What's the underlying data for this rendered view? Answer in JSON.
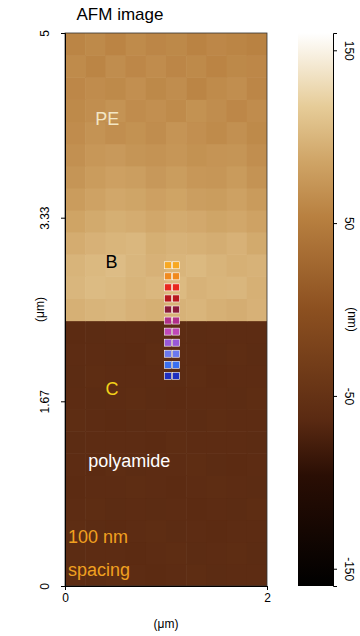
{
  "chart_data": {
    "type": "heatmap",
    "title": "AFM image",
    "x_label": "(μm)",
    "y_label": "(μm)",
    "xlim": [
      0,
      2
    ],
    "xticks": [
      0,
      2
    ],
    "ylim": [
      0,
      5
    ],
    "yticks": [
      0,
      1.67,
      3.33,
      5
    ],
    "x": [
      0.1,
      0.3,
      0.5,
      0.7,
      0.9,
      1.1,
      1.3,
      1.5,
      1.7,
      1.9
    ],
    "y": [
      0.1,
      0.3,
      0.5,
      0.7,
      0.9,
      1.1,
      1.3,
      1.5,
      1.7,
      1.9,
      2.1,
      2.3,
      2.5,
      2.7,
      2.9,
      3.1,
      3.3,
      3.5,
      3.7,
      3.9,
      4.1,
      4.3,
      4.5,
      4.7,
      4.9
    ],
    "z": [
      [
        -60,
        -61,
        -59,
        -60,
        -62,
        -60,
        -59,
        -61,
        -60,
        -60
      ],
      [
        -61,
        -60,
        -60,
        -62,
        -60,
        -59,
        -61,
        -60,
        -59,
        -61
      ],
      [
        -59,
        -61,
        -62,
        -60,
        -59,
        -61,
        -60,
        -62,
        -60,
        -60
      ],
      [
        -60,
        -59,
        -61,
        -60,
        -61,
        -60,
        -62,
        -60,
        -61,
        -59
      ],
      [
        -62,
        -60,
        -60,
        -59,
        -60,
        -62,
        -60,
        -59,
        -60,
        -61
      ],
      [
        -60,
        -62,
        -59,
        -61,
        -60,
        -60,
        -59,
        -61,
        -62,
        -60
      ],
      [
        -61,
        -60,
        -60,
        -60,
        -62,
        -59,
        -60,
        -60,
        -60,
        -61
      ],
      [
        -59,
        -60,
        -62,
        -61,
        -60,
        -60,
        -61,
        -59,
        -60,
        -60
      ],
      [
        -60,
        -61,
        -60,
        -59,
        -61,
        -62,
        -60,
        -60,
        -61,
        -59
      ],
      [
        -61,
        -59,
        -60,
        -60,
        -60,
        -61,
        -59,
        -62,
        -60,
        -60
      ],
      [
        -60,
        -60,
        -61,
        -62,
        -59,
        -60,
        -60,
        -61,
        -59,
        -61
      ],
      [
        -62,
        -61,
        -60,
        -60,
        -61,
        -60,
        -61,
        -60,
        -60,
        -60
      ],
      [
        95,
        98,
        100,
        96,
        94,
        97,
        99,
        95,
        93,
        96
      ],
      [
        100,
        104,
        102,
        98,
        101,
        103,
        97,
        99,
        100,
        95
      ],
      [
        98,
        102,
        105,
        100,
        96,
        99,
        102,
        98,
        95,
        97
      ],
      [
        92,
        96,
        99,
        101,
        94,
        97,
        95,
        93,
        96,
        90
      ],
      [
        85,
        90,
        94,
        92,
        88,
        91,
        89,
        86,
        88,
        84
      ],
      [
        78,
        84,
        88,
        86,
        82,
        85,
        80,
        79,
        83,
        77
      ],
      [
        72,
        78,
        82,
        80,
        75,
        79,
        74,
        73,
        77,
        70
      ],
      [
        68,
        74,
        76,
        72,
        70,
        73,
        69,
        71,
        72,
        66
      ],
      [
        64,
        70,
        66,
        69,
        65,
        71,
        67,
        63,
        68,
        62
      ],
      [
        62,
        66,
        70,
        64,
        67,
        63,
        69,
        65,
        60,
        64
      ],
      [
        60,
        64,
        62,
        67,
        61,
        65,
        58,
        63,
        66,
        59
      ],
      [
        63,
        58,
        65,
        60,
        64,
        59,
        62,
        57,
        61,
        60
      ],
      [
        58,
        62,
        57,
        63,
        59,
        61,
        56,
        60,
        58,
        55
      ]
    ],
    "zlim": [
      -160,
      160
    ],
    "zticks": [
      -150,
      -50,
      50,
      150
    ],
    "z_label": "(nm)",
    "points": {
      "marker": "square",
      "x": [
        1.02,
        1.1,
        1.02,
        1.1,
        1.02,
        1.1,
        1.02,
        1.1,
        1.02,
        1.1,
        1.02,
        1.1,
        1.02,
        1.1,
        1.02,
        1.1,
        1.02,
        1.1,
        1.02,
        1.1,
        1.02,
        1.1
      ],
      "y": [
        2.9,
        2.9,
        2.8,
        2.8,
        2.7,
        2.7,
        2.6,
        2.6,
        2.5,
        2.5,
        2.4,
        2.4,
        2.3,
        2.3,
        2.2,
        2.2,
        2.1,
        2.1,
        2.0,
        2.0,
        1.9,
        1.9
      ],
      "colors": [
        "#f7a823",
        "#f7a823",
        "#f08a20",
        "#f08a20",
        "#e8281e",
        "#e8281e",
        "#b8181e",
        "#b8181e",
        "#8a1a3a",
        "#8a1a3a",
        "#b0308a",
        "#b0308a",
        "#c048b8",
        "#c048b8",
        "#9858d8",
        "#9858d8",
        "#6a78ee",
        "#6a78ee",
        "#3a70f0",
        "#3a70f0",
        "#1e2ec0",
        "#1e2ec0"
      ]
    },
    "annotations": [
      {
        "text": "PE",
        "x": 0.3,
        "y": 4.21,
        "color": "#f3e6c4"
      },
      {
        "text": "B",
        "x": 0.4,
        "y": 2.92,
        "color": "#000000"
      },
      {
        "text": "C",
        "x": 0.4,
        "y": 1.77,
        "color": "#f2d21a"
      },
      {
        "text": "polyamide",
        "x": 0.23,
        "y": 1.12,
        "color": "#ffffff"
      },
      {
        "text": "100 nm",
        "x": 0.03,
        "y": 0.43,
        "color": "#f0a020"
      },
      {
        "text": "spacing",
        "x": 0.03,
        "y": 0.13,
        "color": "#f0a020"
      }
    ]
  }
}
